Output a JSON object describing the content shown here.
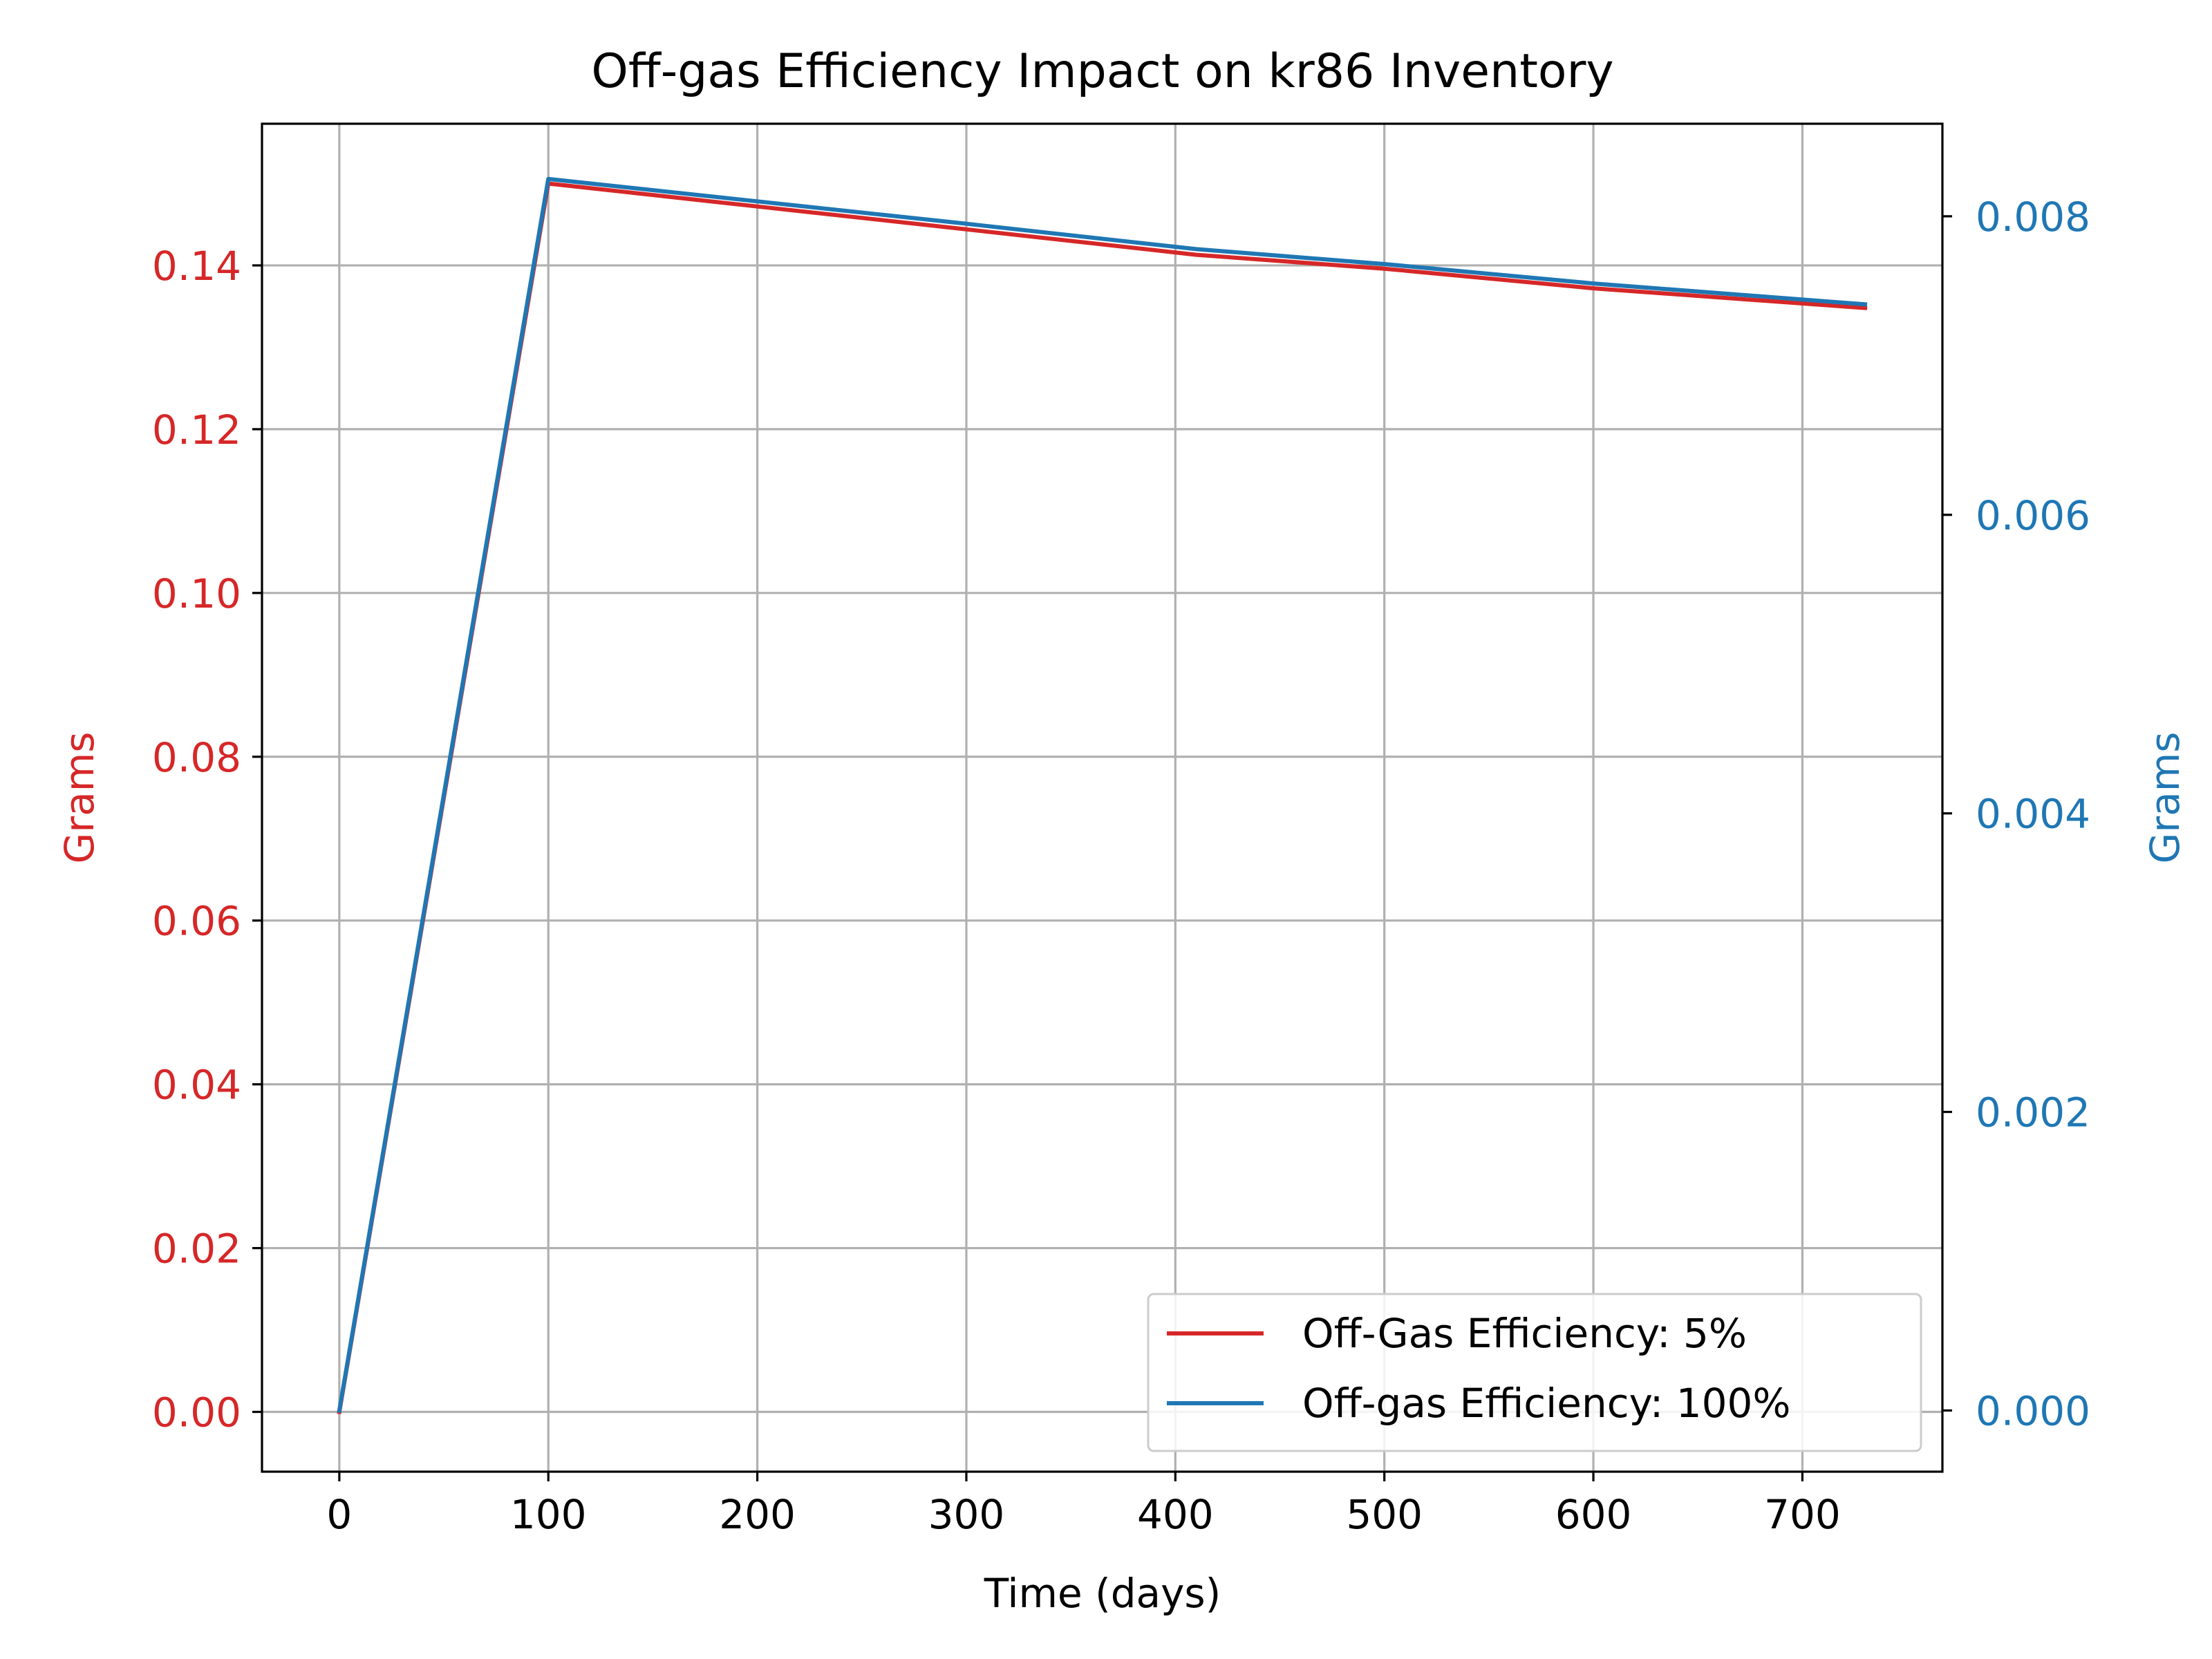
{
  "chart_data": {
    "type": "line",
    "title": "Off-gas Efficiency Impact on kr86 Inventory",
    "xlabel": "Time (days)",
    "ylabel_left": "Grams",
    "ylabel_right": "Grams",
    "xlim": [
      -37,
      767
    ],
    "ylim_left": [
      -0.0073,
      0.1573
    ],
    "ylim_right": [
      -0.00041,
      0.00862
    ],
    "xticks": [
      0,
      100,
      200,
      300,
      400,
      500,
      600,
      700
    ],
    "yticks_left": [
      0.0,
      0.02,
      0.04,
      0.06,
      0.08,
      0.1,
      0.12,
      0.14
    ],
    "yticks_left_labels": [
      "0.00",
      "0.02",
      "0.04",
      "0.06",
      "0.08",
      "0.10",
      "0.12",
      "0.14"
    ],
    "yticks_right": [
      0.0,
      0.002,
      0.004,
      0.006,
      0.008
    ],
    "yticks_right_labels": [
      "0.000",
      "0.002",
      "0.004",
      "0.006",
      "0.008"
    ],
    "grid": true,
    "legend_position": "lower-right",
    "colors": {
      "left_axis": "#d62728",
      "right_axis": "#1f77b4"
    },
    "series": [
      {
        "name": "Off-Gas Efficiency: 5%",
        "axis": "left",
        "color": "#d62728",
        "x": [
          0,
          100,
          200,
          300,
          410,
          500,
          600,
          730
        ],
        "y": [
          0.0,
          0.15,
          0.1472,
          0.1444,
          0.1413,
          0.1396,
          0.1372,
          0.1348
        ]
      },
      {
        "name": "Off-gas Efficiency: 100%",
        "axis": "right",
        "color": "#1f77b4",
        "x": [
          0,
          100,
          200,
          300,
          410,
          500,
          600,
          730
        ],
        "y": [
          0.0,
          0.00825,
          0.0081,
          0.00795,
          0.00778,
          0.00768,
          0.00755,
          0.00741
        ]
      }
    ]
  }
}
